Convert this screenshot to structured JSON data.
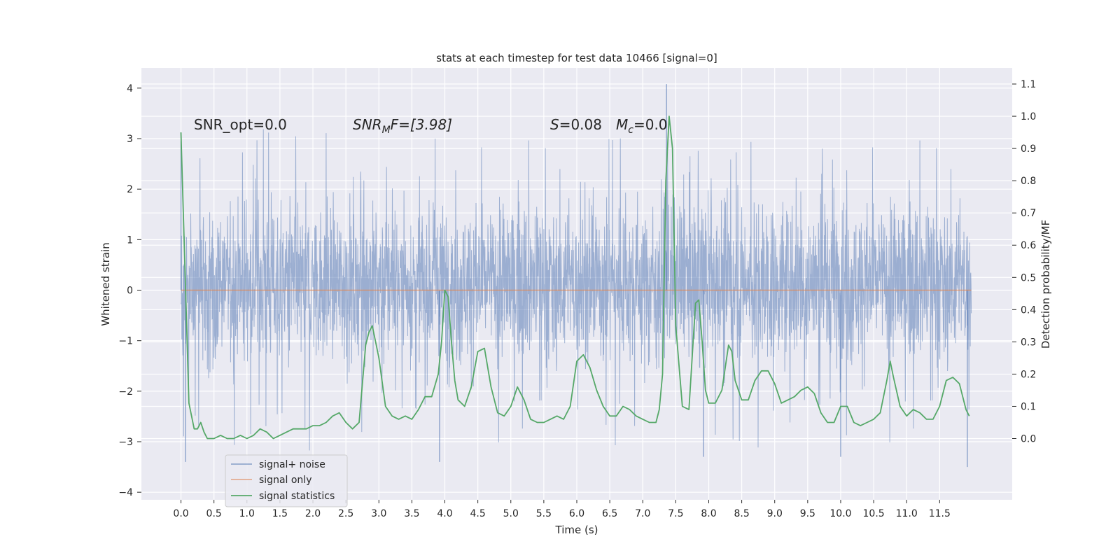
{
  "chart_data": {
    "type": "line",
    "title": "stats at each timestep for test data 10466 [signal=0]",
    "xlabel": "Time (s)",
    "ylabel": "Whitened strain",
    "y2label": "Detection probability/MF",
    "xlim": [
      -0.6,
      12.6
    ],
    "ylim": [
      -4.15,
      4.4
    ],
    "y2lim": [
      -0.19,
      1.15
    ],
    "xticks": [
      0.0,
      0.5,
      1.0,
      1.5,
      2.0,
      2.5,
      3.0,
      3.5,
      4.0,
      4.5,
      5.0,
      5.5,
      6.0,
      6.5,
      7.0,
      7.5,
      8.0,
      8.5,
      9.0,
      9.5,
      10.0,
      10.5,
      11.0,
      11.5
    ],
    "xtick_labels": [
      "0.0",
      "0.5",
      "1.0",
      "1.5",
      "2.0",
      "2.5",
      "3.0",
      "3.5",
      "4.0",
      "4.5",
      "5.0",
      "5.5",
      "6.0",
      "6.5",
      "7.0",
      "7.5",
      "8.0",
      "8.5",
      "9.0",
      "9.5",
      "10.0",
      "10.5",
      "11.0",
      "11.5"
    ],
    "yticks": [
      -4,
      -3,
      -2,
      -1,
      0,
      1,
      2,
      3,
      4
    ],
    "ytick_labels": [
      "−4",
      "−3",
      "−2",
      "−1",
      "0",
      "1",
      "2",
      "3",
      "4"
    ],
    "y2ticks": [
      0.0,
      0.1,
      0.2,
      0.3,
      0.4,
      0.5,
      0.6,
      0.7,
      0.8,
      0.9,
      1.0,
      1.1
    ],
    "y2tick_labels": [
      "0.0",
      "0.1",
      "0.2",
      "0.3",
      "0.4",
      "0.5",
      "0.6",
      "0.7",
      "0.8",
      "0.9",
      "1.0",
      "1.1"
    ],
    "annotations": {
      "snr_opt": "SNR_opt=0.0",
      "snr_mf_main": "SNR",
      "snr_mf_sub": "M",
      "snr_mf_rest": "F=[3.98]",
      "s_var": "S",
      "s_val": "=0.08",
      "mc_var": "M",
      "mc_sub": "c",
      "mc_val": "=0.0"
    },
    "legend": {
      "position": "lower-left",
      "entries": [
        "signal+ noise",
        "signal only",
        "signal statistics"
      ]
    },
    "colors": {
      "plot_bg": "#eaeaf2",
      "grid": "#ffffff",
      "noise": "#4c72b0",
      "signal": "#dd8452",
      "stats": "#55a868"
    },
    "series": [
      {
        "name": "signal+ noise",
        "kind": "noise-band",
        "x_range": [
          0.0,
          11.98
        ],
        "typical_range": [
          -1.0,
          1.3
        ],
        "extreme_range": [
          -3.5,
          4.1
        ],
        "notable_peaks": [
          [
            0.0,
            2.95
          ],
          [
            7.36,
            4.08
          ],
          [
            0.07,
            -3.4
          ],
          [
            11.92,
            -3.5
          ],
          [
            10.0,
            -3.3
          ],
          [
            7.92,
            -3.3
          ],
          [
            3.92,
            -3.4
          ]
        ]
      },
      {
        "name": "signal only",
        "x": [
          0.0,
          11.98
        ],
        "y": [
          0.0,
          0.0
        ]
      },
      {
        "name": "signal statistics",
        "axis": "right",
        "x": [
          0.0,
          0.12,
          0.2,
          0.25,
          0.3,
          0.35,
          0.4,
          0.5,
          0.6,
          0.7,
          0.8,
          0.9,
          1.0,
          1.1,
          1.2,
          1.3,
          1.4,
          1.5,
          1.6,
          1.7,
          1.8,
          1.9,
          2.0,
          2.1,
          2.2,
          2.3,
          2.4,
          2.5,
          2.6,
          2.7,
          2.8,
          2.85,
          2.9,
          2.95,
          3.0,
          3.1,
          3.2,
          3.3,
          3.4,
          3.5,
          3.6,
          3.7,
          3.8,
          3.9,
          3.95,
          4.0,
          4.05,
          4.1,
          4.15,
          4.2,
          4.3,
          4.4,
          4.5,
          4.6,
          4.7,
          4.8,
          4.9,
          5.0,
          5.1,
          5.2,
          5.3,
          5.4,
          5.5,
          5.6,
          5.7,
          5.8,
          5.9,
          6.0,
          6.1,
          6.2,
          6.3,
          6.4,
          6.5,
          6.6,
          6.7,
          6.8,
          6.9,
          7.0,
          7.1,
          7.2,
          7.25,
          7.3,
          7.35,
          7.4,
          7.45,
          7.5,
          7.6,
          7.7,
          7.8,
          7.85,
          7.9,
          7.95,
          8.0,
          8.1,
          8.2,
          8.3,
          8.35,
          8.4,
          8.5,
          8.6,
          8.7,
          8.8,
          8.9,
          9.0,
          9.1,
          9.2,
          9.3,
          9.4,
          9.5,
          9.6,
          9.7,
          9.8,
          9.9,
          10.0,
          10.1,
          10.2,
          10.3,
          10.4,
          10.5,
          10.6,
          10.7,
          10.75,
          10.8,
          10.9,
          11.0,
          11.1,
          11.2,
          11.3,
          11.4,
          11.5,
          11.6,
          11.7,
          11.8,
          11.9,
          11.95
        ],
        "y": [
          0.95,
          0.11,
          0.03,
          0.03,
          0.05,
          0.02,
          0.0,
          0.0,
          0.01,
          0.0,
          0.0,
          0.01,
          0.0,
          0.01,
          0.03,
          0.02,
          0.0,
          0.01,
          0.02,
          0.03,
          0.03,
          0.03,
          0.04,
          0.04,
          0.05,
          0.07,
          0.08,
          0.05,
          0.03,
          0.05,
          0.29,
          0.33,
          0.35,
          0.3,
          0.25,
          0.1,
          0.07,
          0.06,
          0.07,
          0.06,
          0.09,
          0.13,
          0.13,
          0.2,
          0.3,
          0.46,
          0.44,
          0.3,
          0.18,
          0.12,
          0.1,
          0.16,
          0.27,
          0.28,
          0.16,
          0.08,
          0.07,
          0.1,
          0.16,
          0.12,
          0.06,
          0.05,
          0.05,
          0.06,
          0.07,
          0.06,
          0.1,
          0.24,
          0.26,
          0.22,
          0.15,
          0.1,
          0.07,
          0.07,
          0.1,
          0.09,
          0.07,
          0.06,
          0.05,
          0.05,
          0.09,
          0.2,
          0.8,
          1.0,
          0.9,
          0.35,
          0.1,
          0.09,
          0.42,
          0.43,
          0.3,
          0.15,
          0.11,
          0.11,
          0.15,
          0.29,
          0.27,
          0.18,
          0.12,
          0.12,
          0.18,
          0.21,
          0.21,
          0.17,
          0.11,
          0.12,
          0.13,
          0.15,
          0.16,
          0.14,
          0.08,
          0.05,
          0.05,
          0.1,
          0.1,
          0.05,
          0.04,
          0.05,
          0.06,
          0.08,
          0.18,
          0.24,
          0.19,
          0.1,
          0.07,
          0.09,
          0.08,
          0.06,
          0.06,
          0.1,
          0.18,
          0.19,
          0.17,
          0.09,
          0.07
        ]
      }
    ]
  }
}
